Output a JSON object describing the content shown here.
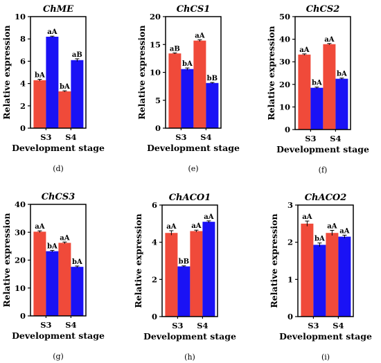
{
  "chart_data": [
    {
      "type": "bar",
      "panel": "(d)",
      "title": "ChME",
      "ylabel": "Relative expression",
      "xlabel": "Development stage",
      "categories": [
        "S3",
        "S4"
      ],
      "ylim": [
        0,
        10
      ],
      "yticks": [
        0,
        2,
        4,
        6,
        8,
        10
      ],
      "series": [
        {
          "values": [
            4.3,
            3.3
          ],
          "errors": [
            0.08,
            0.05
          ],
          "labels": [
            "bA",
            "bA"
          ]
        },
        {
          "values": [
            8.2,
            6.1
          ],
          "errors": [
            0.05,
            0.12
          ],
          "labels": [
            "aA",
            "aB"
          ]
        }
      ]
    },
    {
      "type": "bar",
      "panel": "(e)",
      "title": "ChCS1",
      "ylabel": "Relative expression",
      "xlabel": "Development stage",
      "categories": [
        "S3",
        "S4"
      ],
      "ylim": [
        0,
        20
      ],
      "yticks": [
        0,
        5,
        10,
        15,
        20
      ],
      "series": [
        {
          "values": [
            13.4,
            15.7
          ],
          "errors": [
            0.1,
            0.15
          ],
          "labels": [
            "aB",
            "aA"
          ]
        },
        {
          "values": [
            10.6,
            8.1
          ],
          "errors": [
            0.2,
            0.1
          ],
          "labels": [
            "bA",
            "bB"
          ]
        }
      ]
    },
    {
      "type": "bar",
      "panel": "(f)",
      "title": "ChCS2",
      "ylabel": "Relative expression",
      "xlabel": "Development stage",
      "categories": [
        "S3",
        "S4"
      ],
      "ylim": [
        0,
        50
      ],
      "yticks": [
        0,
        10,
        20,
        30,
        40,
        50
      ],
      "series": [
        {
          "values": [
            33.2,
            37.8
          ],
          "errors": [
            0.3,
            0.3
          ],
          "labels": [
            "aA",
            "aA"
          ]
        },
        {
          "values": [
            18.5,
            22.5
          ],
          "errors": [
            0.3,
            0.3
          ],
          "labels": [
            "bA",
            "bA"
          ]
        }
      ]
    },
    {
      "type": "bar",
      "panel": "(g)",
      "title": "ChCS3",
      "ylabel": "Relative expression",
      "xlabel": "Development stage",
      "categories": [
        "S3",
        "S4"
      ],
      "ylim": [
        0,
        40
      ],
      "yticks": [
        0,
        10,
        20,
        30,
        40
      ],
      "series": [
        {
          "values": [
            30.2,
            26.2
          ],
          "errors": [
            0.3,
            0.3
          ],
          "labels": [
            "aA",
            "aA"
          ]
        },
        {
          "values": [
            23.2,
            17.6
          ],
          "errors": [
            0.3,
            0.3
          ],
          "labels": [
            "bA",
            "bA"
          ]
        }
      ]
    },
    {
      "type": "bar",
      "panel": "(h)",
      "title": "ChACO1",
      "ylabel": "Relative expression",
      "xlabel": "Development stage",
      "categories": [
        "S3",
        "S4"
      ],
      "ylim": [
        0,
        6
      ],
      "yticks": [
        0,
        2,
        4,
        6
      ],
      "series": [
        {
          "values": [
            4.5,
            4.6
          ],
          "errors": [
            0.12,
            0.05
          ],
          "labels": [
            "aA",
            "aA"
          ]
        },
        {
          "values": [
            2.7,
            5.1
          ],
          "errors": [
            0.03,
            0.05
          ],
          "labels": [
            "bB",
            "aA"
          ]
        }
      ]
    },
    {
      "type": "bar",
      "panel": "(i)",
      "title": "ChACO2",
      "ylabel": "Relative expression",
      "xlabel": "Development stage",
      "categories": [
        "S3",
        "S4"
      ],
      "ylim": [
        0,
        3
      ],
      "yticks": [
        0,
        1,
        2,
        3
      ],
      "series": [
        {
          "values": [
            2.5,
            2.25
          ],
          "errors": [
            0.07,
            0.07
          ],
          "labels": [
            "aA",
            "aA"
          ]
        },
        {
          "values": [
            1.93,
            2.15
          ],
          "errors": [
            0.05,
            0.04
          ],
          "labels": [
            "bA",
            "aA"
          ]
        }
      ]
    }
  ],
  "colors": {
    "series1": "#f04a3a",
    "series2": "#1a12f5",
    "axis": "#000000"
  }
}
